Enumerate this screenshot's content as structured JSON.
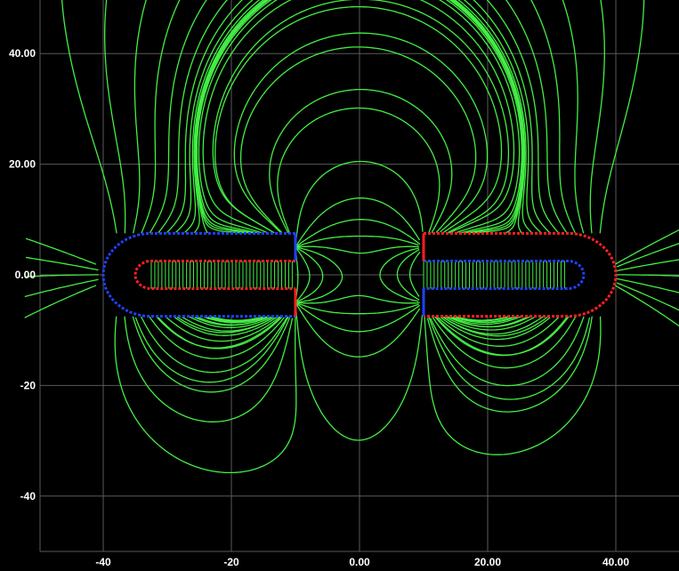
{
  "chart_data": {
    "type": "contour",
    "description_visible": "field lines around two U-shaped conductors",
    "xlim": [
      -50,
      50
    ],
    "ylim": [
      -50,
      50
    ],
    "grid": true,
    "x_ticks": [
      {
        "value": -40,
        "label": "-40"
      },
      {
        "value": -20,
        "label": "-20"
      },
      {
        "value": 0,
        "label": "0.00"
      },
      {
        "value": 20,
        "label": "20.00"
      },
      {
        "value": 40,
        "label": "40.00"
      }
    ],
    "y_ticks": [
      {
        "value": 40,
        "label": "40.00"
      },
      {
        "value": 20,
        "label": "20.00"
      },
      {
        "value": 0,
        "label": "0.00"
      },
      {
        "value": -20,
        "label": "-20"
      },
      {
        "value": -40,
        "label": "-40"
      }
    ],
    "colors": {
      "background": "#000000",
      "grid": "#5a5a5a",
      "field_lines": "#44ee44",
      "tick_label": "#ffffff",
      "boundary_positive": "#ff2020",
      "boundary_negative": "#2040ff"
    },
    "conductors": [
      {
        "name": "left",
        "outer": {
          "x0": -40,
          "x1": -10,
          "y0": -7.5,
          "y1": 7.5
        },
        "inner": {
          "x0": -35,
          "x1": -10,
          "y0": -2.5,
          "y1": 2.5
        },
        "outer_color": "blue",
        "inner_color": "red"
      },
      {
        "name": "right",
        "outer": {
          "x0": 10,
          "x1": 40,
          "y0": -7.5,
          "y1": 7.5
        },
        "inner": {
          "x0": 10,
          "x1": 35,
          "y0": -2.5,
          "y1": 2.5
        },
        "outer_color": "red",
        "inner_color": "blue"
      }
    ]
  }
}
